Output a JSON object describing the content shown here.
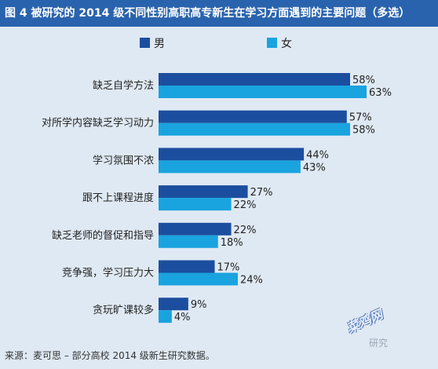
{
  "title": "图 4 被研究的 2014 级不同性别高职高专新生在学习方面遇到的主要问题（多选）",
  "source": "来源：麦可思 – 部分高校 2014 级新生研究数据。",
  "watermark": {
    "logo": "菜鸡网",
    "text": "研究"
  },
  "colors": {
    "male": "#1c4e9f",
    "female": "#19a3df",
    "title_bg": "#2a63ad",
    "background": "#dfe9f3"
  },
  "chart_data": {
    "type": "bar",
    "orientation": "horizontal",
    "categories": [
      "缺乏自学方法",
      "对所学内容缺乏学习动力",
      "学习氛围不浓",
      "跟不上课程进度",
      "缺乏老师的督促和指导",
      "竞争强，学习压力大",
      "贪玩旷课较多"
    ],
    "series": [
      {
        "name": "男",
        "values": [
          58,
          57,
          44,
          27,
          22,
          17,
          9
        ]
      },
      {
        "name": "女",
        "values": [
          63,
          58,
          43,
          22,
          18,
          24,
          4
        ]
      }
    ],
    "value_suffix": "%",
    "xlim": [
      0,
      100
    ],
    "legend_position": "top",
    "grid": false
  }
}
